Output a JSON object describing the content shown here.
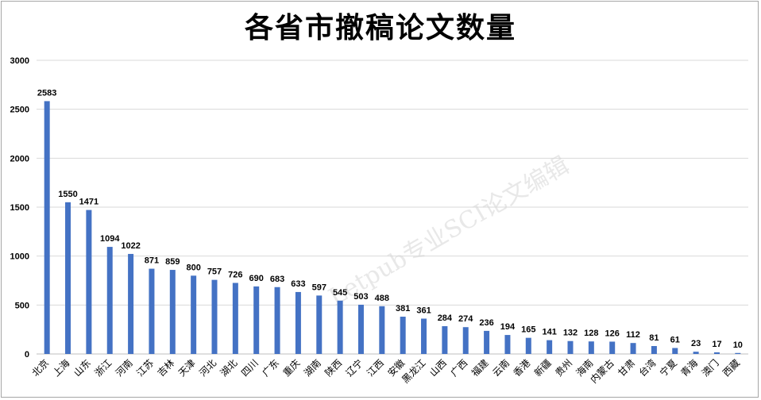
{
  "chart_data": {
    "type": "bar",
    "title": "各省市撤稿论文数量",
    "watermark": "Letpub专业SCI论文编辑",
    "categories": [
      "北京",
      "上海",
      "山东",
      "浙江",
      "河南",
      "江苏",
      "吉林",
      "天津",
      "河北",
      "湖北",
      "四川",
      "广东",
      "重庆",
      "湖南",
      "陕西",
      "辽宁",
      "江西",
      "安徽",
      "黑龙江",
      "山西",
      "广西",
      "福建",
      "云南",
      "香港",
      "新疆",
      "贵州",
      "海南",
      "内蒙古",
      "甘肃",
      "台湾",
      "宁夏",
      "青海",
      "澳门",
      "西藏"
    ],
    "values": [
      2583,
      1550,
      1471,
      1094,
      1022,
      871,
      859,
      800,
      757,
      726,
      690,
      683,
      633,
      597,
      545,
      503,
      488,
      381,
      361,
      284,
      274,
      236,
      194,
      165,
      141,
      132,
      128,
      126,
      112,
      81,
      61,
      23,
      17,
      10
    ],
    "yticks": [
      "0",
      "500",
      "1000",
      "1500",
      "2000",
      "2500",
      "3000"
    ],
    "ylim": [
      0,
      3000
    ],
    "grid": true,
    "bar_color": "#4472c4",
    "xlabel": "",
    "ylabel": ""
  }
}
